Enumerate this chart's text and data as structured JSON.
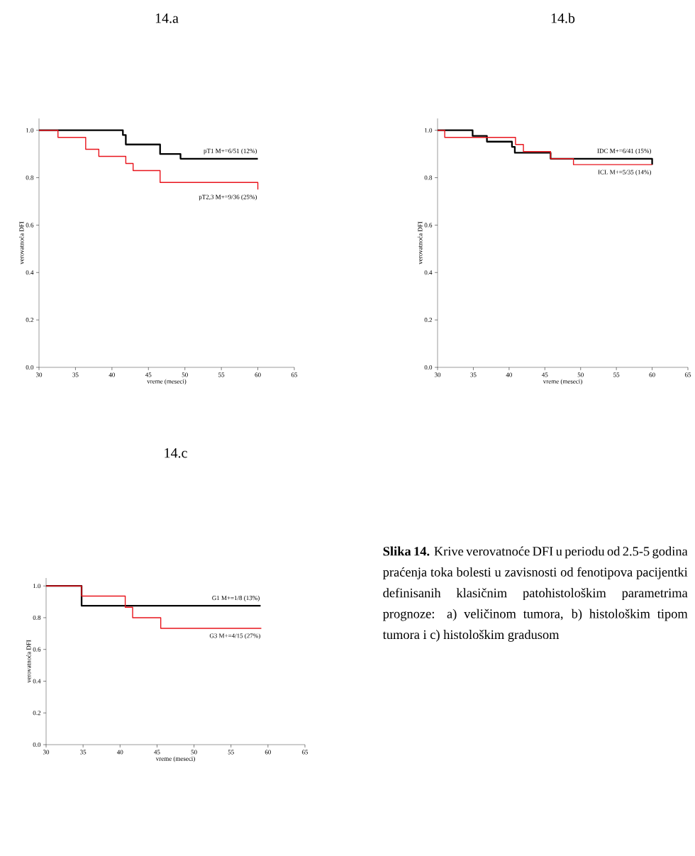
{
  "chart_data": [
    {
      "type": "step",
      "title": "14.a",
      "xlabel": "vreme (meseci)",
      "ylabel": "verovatnoća DFI",
      "xlim": [
        30,
        65
      ],
      "ylim": [
        0,
        1.05
      ],
      "xticks": [
        30,
        35,
        40,
        45,
        50,
        55,
        60,
        65
      ],
      "yticks": [
        {
          "value": 0,
          "label": "0.0"
        },
        {
          "value": 0.2,
          "label": "0.2"
        },
        {
          "value": 0.4,
          "label": "0.4"
        },
        {
          "value": 0.6,
          "label": "0.6"
        },
        {
          "value": 0.8,
          "label": "0.8"
        },
        {
          "value": 1,
          "label": "1.0"
        }
      ],
      "series": [
        {
          "name": "pT1  M+=6/51 (12%)",
          "color": "#000000",
          "x": [
            30,
            41.5,
            41.9,
            46.6,
            49.4,
            60
          ],
          "values": [
            1,
            0.98,
            0.94,
            0.9,
            0.88,
            0.88
          ]
        },
        {
          "name": "pT2,3  M+=9/36 (25%)",
          "color": "#e8141c",
          "x": [
            30,
            32.6,
            36.4,
            38.2,
            41.9,
            42.9,
            46.6,
            60
          ],
          "values": [
            1,
            0.97,
            0.92,
            0.89,
            0.86,
            0.83,
            0.78,
            0.75
          ]
        }
      ]
    },
    {
      "type": "step",
      "title": "14.b",
      "xlabel": "vreme (meseci)",
      "ylabel": "verovatnoća DFI",
      "xlim": [
        30,
        65
      ],
      "ylim": [
        0,
        1.05
      ],
      "xticks": [
        30,
        35,
        40,
        45,
        50,
        55,
        60,
        65
      ],
      "yticks": [
        {
          "value": 0,
          "label": "0.0"
        },
        {
          "value": 0.2,
          "label": "0.2"
        },
        {
          "value": 0.4,
          "label": "0.4"
        },
        {
          "value": 0.6,
          "label": "0.6"
        },
        {
          "value": 0.8,
          "label": "0.8"
        },
        {
          "value": 1,
          "label": "1.0"
        }
      ],
      "series": [
        {
          "name": "IDC  M+=6/41 (15%)",
          "color": "#000000",
          "x": [
            30,
            34.9,
            36.9,
            40.4,
            40.8,
            45.8,
            60
          ],
          "values": [
            1,
            0.976,
            0.952,
            0.93,
            0.905,
            0.88,
            0.855
          ]
        },
        {
          "name": "ICL  M+=5/35 (14%)",
          "color": "#e8141c",
          "x": [
            30,
            31,
            40.9,
            42,
            45.8,
            49,
            60
          ],
          "values": [
            1,
            0.97,
            0.94,
            0.91,
            0.88,
            0.855,
            0.855
          ]
        }
      ]
    },
    {
      "type": "step",
      "title": "14.c",
      "xlabel": "vreme (meseci)",
      "ylabel": "verovatnoća DFI",
      "xlim": [
        30,
        65
      ],
      "ylim": [
        0,
        1.05
      ],
      "xticks": [
        30,
        35,
        40,
        45,
        50,
        55,
        60,
        65
      ],
      "yticks": [
        {
          "value": 0,
          "label": "0.0"
        },
        {
          "value": 0.2,
          "label": "0.2"
        },
        {
          "value": 0.4,
          "label": "0.4"
        },
        {
          "value": 0.6,
          "label": "0.6"
        },
        {
          "value": 0.8,
          "label": "0.8"
        },
        {
          "value": 1,
          "label": "1.0"
        }
      ],
      "series": [
        {
          "name": "G1  M+=1/8 (13%)",
          "color": "#000000",
          "x": [
            30,
            34.8,
            59
          ],
          "values": [
            1,
            0.875,
            0.875
          ]
        },
        {
          "name": "G3  M+=4/15 (27%)",
          "color": "#e8141c",
          "x": [
            30,
            34.8,
            40.7,
            41.7,
            45.5,
            59.1
          ],
          "values": [
            1,
            0.936,
            0.866,
            0.8,
            0.733,
            0.733
          ]
        }
      ],
      "annotations": [
        "**Slika 14.** Krive verovatnoće DFI u periodu od 2.5-5 godina praćenja toka bolesti u zavisnosti od fenotipova pacijentki definisanih klasičnim patohistološkim parametrima prognoze: a) veličinom tumora, b) histološkim tipom tumora i c) histološkim gradusom"
      ]
    }
  ]
}
